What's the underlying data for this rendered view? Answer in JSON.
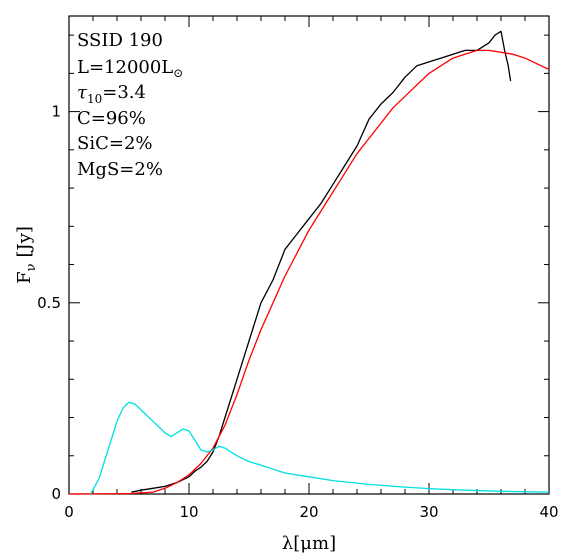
{
  "chart_data": {
    "type": "line",
    "title": "",
    "xlabel": "λ[μm]",
    "ylabel": "F",
    "ylabel_sub": "ν",
    "ylabel_unit": "[Jy]",
    "xlim": [
      0,
      40
    ],
    "ylim": [
      0,
      1.25
    ],
    "x_ticks": [
      0,
      10,
      20,
      30,
      40
    ],
    "y_ticks": [
      0,
      0.5,
      1
    ],
    "y_tick_labels": [
      "0",
      "0.5",
      "1"
    ],
    "grid": false,
    "annotations": [
      "SSID 190",
      "L=12000L⊙",
      "τ10=3.4",
      "C=96%",
      "SiC=2%",
      "MgS=2%"
    ],
    "annotation_parts": {
      "ssid": "SSID 190",
      "lum_prefix": "L=12000L",
      "lum_symbol": "⊙",
      "tau_prefix": "τ",
      "tau_sub": "10",
      "tau_value": "=3.4",
      "c": "C=96%",
      "sic": "SiC=2%",
      "mgs": "MgS=2%"
    },
    "series": [
      {
        "color": "#000000",
        "x": [
          5.2,
          6,
          7,
          8,
          9,
          10,
          10.5,
          11,
          11.5,
          12,
          12.5,
          13,
          14,
          15,
          16,
          17,
          17.5,
          18,
          18.5,
          19,
          19.5,
          20,
          21,
          22,
          23,
          24,
          25,
          26,
          27,
          28,
          29,
          30,
          31,
          32,
          33,
          34,
          35,
          35.5,
          36,
          36.3,
          36.6,
          36.8
        ],
        "y": [
          0.005,
          0.01,
          0.015,
          0.02,
          0.03,
          0.045,
          0.06,
          0.07,
          0.085,
          0.11,
          0.15,
          0.2,
          0.3,
          0.4,
          0.5,
          0.56,
          0.6,
          0.64,
          0.66,
          0.68,
          0.7,
          0.72,
          0.76,
          0.81,
          0.86,
          0.91,
          0.98,
          1.02,
          1.05,
          1.09,
          1.12,
          1.13,
          1.14,
          1.15,
          1.16,
          1.16,
          1.18,
          1.2,
          1.21,
          1.16,
          1.12,
          1.08
        ]
      },
      {
        "color": "#ff0000",
        "x": [
          0,
          5,
          7,
          8,
          9,
          10,
          11,
          12,
          13,
          14,
          15,
          16,
          17,
          18,
          19,
          20,
          21,
          22,
          23,
          24,
          25,
          26,
          27,
          28,
          29,
          30,
          31,
          32,
          33,
          34,
          35,
          36,
          37,
          38,
          39,
          40
        ],
        "y": [
          0,
          0.001,
          0.005,
          0.015,
          0.03,
          0.05,
          0.08,
          0.12,
          0.18,
          0.26,
          0.35,
          0.43,
          0.5,
          0.57,
          0.63,
          0.69,
          0.74,
          0.79,
          0.84,
          0.89,
          0.93,
          0.97,
          1.01,
          1.04,
          1.07,
          1.1,
          1.12,
          1.14,
          1.15,
          1.16,
          1.16,
          1.155,
          1.15,
          1.14,
          1.125,
          1.11
        ]
      },
      {
        "color": "#00e0e0",
        "x": [
          1.8,
          2.5,
          3,
          3.5,
          4,
          4.5,
          5,
          5.5,
          6,
          6.5,
          7,
          7.5,
          8,
          8.5,
          9,
          9.5,
          10,
          10.5,
          11,
          11.5,
          12,
          12.5,
          13,
          13.5,
          14,
          15,
          16,
          17,
          18,
          20,
          22,
          25,
          28,
          30,
          33,
          36,
          40
        ],
        "y": [
          0,
          0.04,
          0.09,
          0.14,
          0.19,
          0.225,
          0.24,
          0.235,
          0.22,
          0.205,
          0.19,
          0.175,
          0.16,
          0.15,
          0.16,
          0.17,
          0.165,
          0.14,
          0.115,
          0.11,
          0.115,
          0.125,
          0.12,
          0.11,
          0.1,
          0.085,
          0.075,
          0.065,
          0.055,
          0.045,
          0.035,
          0.025,
          0.018,
          0.014,
          0.01,
          0.007,
          0.005
        ]
      }
    ]
  }
}
